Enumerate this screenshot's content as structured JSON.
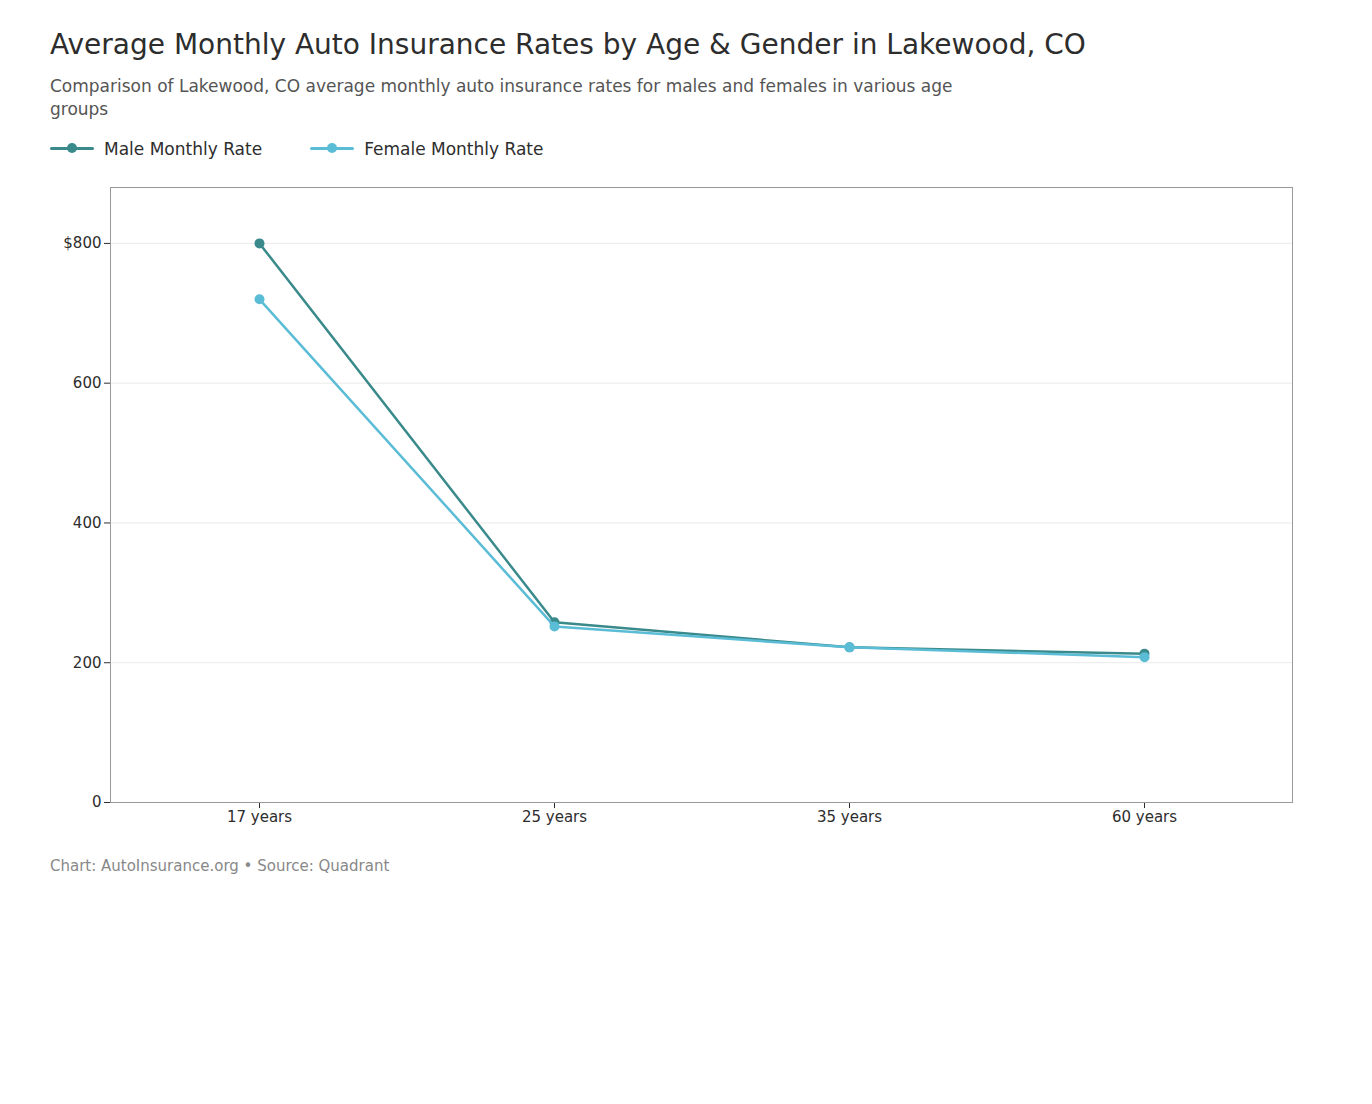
{
  "chart_data": {
    "type": "line",
    "title": "Average Monthly Auto Insurance Rates by Age & Gender in Lakewood, CO",
    "subtitle": "Comparison of Lakewood, CO average monthly auto insurance rates for males and females in various age\ngroups",
    "footnote": "Chart: AutoInsurance.org • Source: Quadrant",
    "categories": [
      "17 years",
      "25 years",
      "35 years",
      "60 years"
    ],
    "series": [
      {
        "name": "Male Monthly Rate",
        "color": "#3a8a8c",
        "values": [
          800,
          258,
          222,
          213
        ],
        "marker": "circle"
      },
      {
        "name": "Female Monthly Rate",
        "color": "#5bbcd6",
        "values": [
          720,
          252,
          222,
          208
        ],
        "marker": "circle"
      }
    ],
    "ylim": [
      0,
      880
    ],
    "yticks": [
      0,
      200,
      400,
      600,
      {
        "value": 800,
        "label": "$800"
      }
    ],
    "grid": true,
    "legend": "top-left"
  }
}
